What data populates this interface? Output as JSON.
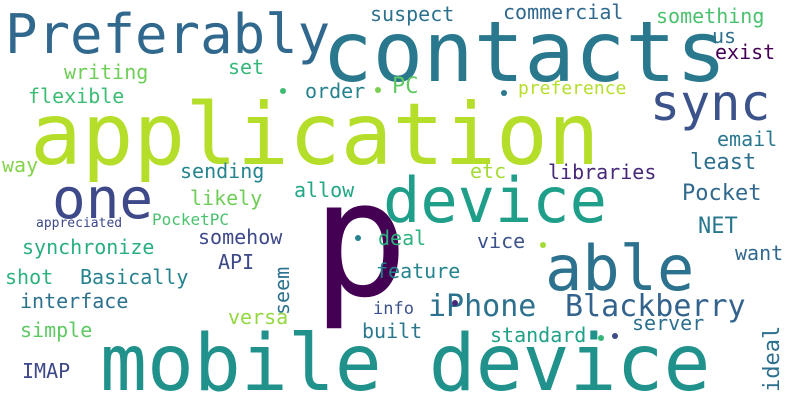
{
  "words": [
    {
      "text": "application",
      "color": "#b5de2b"
    },
    {
      "text": "contacts",
      "color": "#2a788e"
    },
    {
      "text": "mobile device",
      "color": "#21918c"
    },
    {
      "text": "p",
      "color": "#440154"
    },
    {
      "text": "Preferably",
      "color": "#31688e"
    },
    {
      "text": "device",
      "color": "#1f9e89"
    },
    {
      "text": "able",
      "color": "#2c728e"
    },
    {
      "text": "sync",
      "color": "#3b528b"
    },
    {
      "text": "one",
      "color": "#3e4989"
    },
    {
      "text": "iPhone",
      "color": "#2c728e"
    },
    {
      "text": "Blackberry",
      "color": "#33638d"
    },
    {
      "text": "suspect",
      "color": "#2c728e"
    },
    {
      "text": "commercial",
      "color": "#31688e"
    },
    {
      "text": "something",
      "color": "#4ac16d"
    },
    {
      "text": "us",
      "color": "#2d708e"
    },
    {
      "text": "exist",
      "color": "#440154"
    },
    {
      "text": "writing",
      "color": "#6ece58"
    },
    {
      "text": "set",
      "color": "#35b779"
    },
    {
      "text": "PC",
      "color": "#5ec962"
    },
    {
      "text": "order",
      "color": "#26828e"
    },
    {
      "text": "preference",
      "color": "#b5de2b"
    },
    {
      "text": "flexible",
      "color": "#3dbc74"
    },
    {
      "text": "email",
      "color": "#2a788e"
    },
    {
      "text": "way",
      "color": "#84d44b"
    },
    {
      "text": "sending",
      "color": "#25848e"
    },
    {
      "text": "etc",
      "color": "#a5db36"
    },
    {
      "text": "libraries",
      "color": "#482878"
    },
    {
      "text": "least",
      "color": "#2d708e"
    },
    {
      "text": "likely",
      "color": "#6ece58"
    },
    {
      "text": "Pocket",
      "color": "#31688e"
    },
    {
      "text": "allow",
      "color": "#22a785"
    },
    {
      "text": "appreciated",
      "color": "#3e4989"
    },
    {
      "text": "PocketPC",
      "color": "#4ac16d"
    },
    {
      "text": "somehow",
      "color": "#3e4989"
    },
    {
      "text": "deal",
      "color": "#2db27d"
    },
    {
      "text": "NET",
      "color": "#2a788e"
    },
    {
      "text": "synchronize",
      "color": "#29af7f"
    },
    {
      "text": "vice",
      "color": "#3b528b"
    },
    {
      "text": "want",
      "color": "#31688e"
    },
    {
      "text": "API",
      "color": "#3e4989"
    },
    {
      "text": "seem",
      "color": "#2c728e"
    },
    {
      "text": "shot",
      "color": "#2db27d"
    },
    {
      "text": "Basically",
      "color": "#26828e"
    },
    {
      "text": "feature",
      "color": "#25848e"
    },
    {
      "text": "interface",
      "color": "#2c728e"
    },
    {
      "text": "info",
      "color": "#3b528b"
    },
    {
      "text": "versa",
      "color": "#93d741"
    },
    {
      "text": "server",
      "color": "#2d708e"
    },
    {
      "text": "simple",
      "color": "#5ec962"
    },
    {
      "text": "built",
      "color": "#2a788e"
    },
    {
      "text": "standard",
      "color": "#1fa187"
    },
    {
      "text": "ideal",
      "color": "#2d708e"
    },
    {
      "text": "IMAP",
      "color": "#3e4989"
    }
  ],
  "dots": [
    {
      "color": "#3dbc74"
    },
    {
      "color": "#7ad151"
    },
    {
      "color": "#2a788e"
    },
    {
      "color": "#26828e"
    },
    {
      "color": "#a5db36"
    },
    {
      "color": "#35b779"
    },
    {
      "color": "#3e4989"
    },
    {
      "color": "#482878"
    }
  ]
}
